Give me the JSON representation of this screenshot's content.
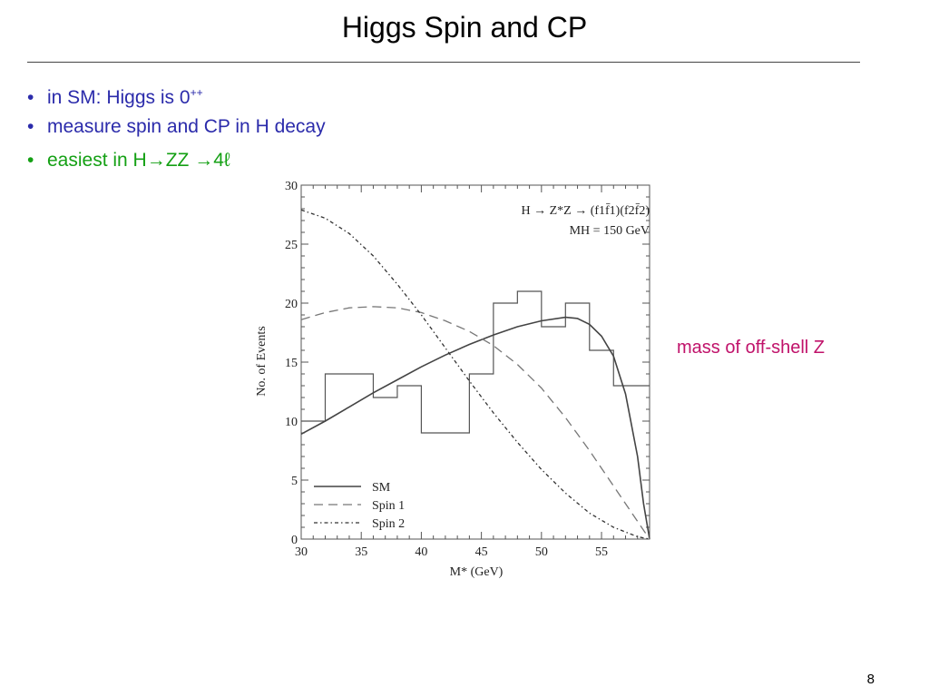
{
  "slide": {
    "title": "Higgs Spin and CP",
    "bullets": [
      {
        "text": "in SM: Higgs is 0",
        "sup": "++",
        "color": "#2b2bab"
      },
      {
        "text": "measure spin and CP in H decay",
        "color": "#2b2bab"
      },
      {
        "text": "easiest in H→ZZ →4ℓ",
        "color": "#14a014"
      }
    ],
    "side_note": "mass of off-shell Z",
    "page_number": "8"
  },
  "chart_data": {
    "type": "line",
    "title": "H → Z*Z → (f1f̄1)(f2f̄2)",
    "subtitle": "MH = 150 GeV",
    "xlabel": "M* (GeV)",
    "ylabel": "No. of Events",
    "xlim": [
      30,
      59
    ],
    "ylim": [
      0,
      30
    ],
    "xticks": [
      30,
      35,
      40,
      45,
      50,
      55
    ],
    "yticks": [
      0,
      5,
      10,
      15,
      20,
      25,
      30
    ],
    "legend_position": "bottom-left",
    "histogram": {
      "bin_edges": [
        30,
        32,
        34,
        36,
        38,
        40,
        42,
        44,
        46,
        48,
        50,
        52,
        54,
        56,
        58,
        59
      ],
      "counts": [
        10,
        14,
        14,
        12,
        13,
        9,
        9,
        14,
        20,
        21,
        18,
        20,
        16,
        13,
        13
      ]
    },
    "series": [
      {
        "name": "SM",
        "style": "solid",
        "x": [
          30,
          32,
          34,
          36,
          38,
          40,
          42,
          44,
          46,
          48,
          50,
          52,
          53,
          54,
          55,
          56,
          57,
          58,
          58.5,
          59
        ],
        "y": [
          8.9,
          10.0,
          11.2,
          12.4,
          13.5,
          14.6,
          15.6,
          16.5,
          17.3,
          18.0,
          18.5,
          18.8,
          18.7,
          18.2,
          17.2,
          15.5,
          12.3,
          7.0,
          3.0,
          0
        ]
      },
      {
        "name": "Spin 1",
        "style": "dashed",
        "x": [
          30,
          32,
          34,
          36,
          38,
          40,
          42,
          44,
          46,
          48,
          50,
          52,
          54,
          56,
          58,
          59
        ],
        "y": [
          18.6,
          19.2,
          19.6,
          19.7,
          19.6,
          19.2,
          18.5,
          17.6,
          16.4,
          14.8,
          12.8,
          10.3,
          7.5,
          4.5,
          1.5,
          0
        ]
      },
      {
        "name": "Spin 2",
        "style": "dash-dot",
        "x": [
          30,
          32,
          34,
          36,
          38,
          40,
          42,
          44,
          46,
          48,
          50,
          52,
          54,
          56,
          58,
          59
        ],
        "y": [
          27.9,
          27.2,
          25.9,
          24.0,
          21.6,
          19.0,
          16.2,
          13.4,
          10.7,
          8.2,
          5.9,
          3.9,
          2.2,
          1.0,
          0.2,
          0
        ]
      }
    ]
  }
}
